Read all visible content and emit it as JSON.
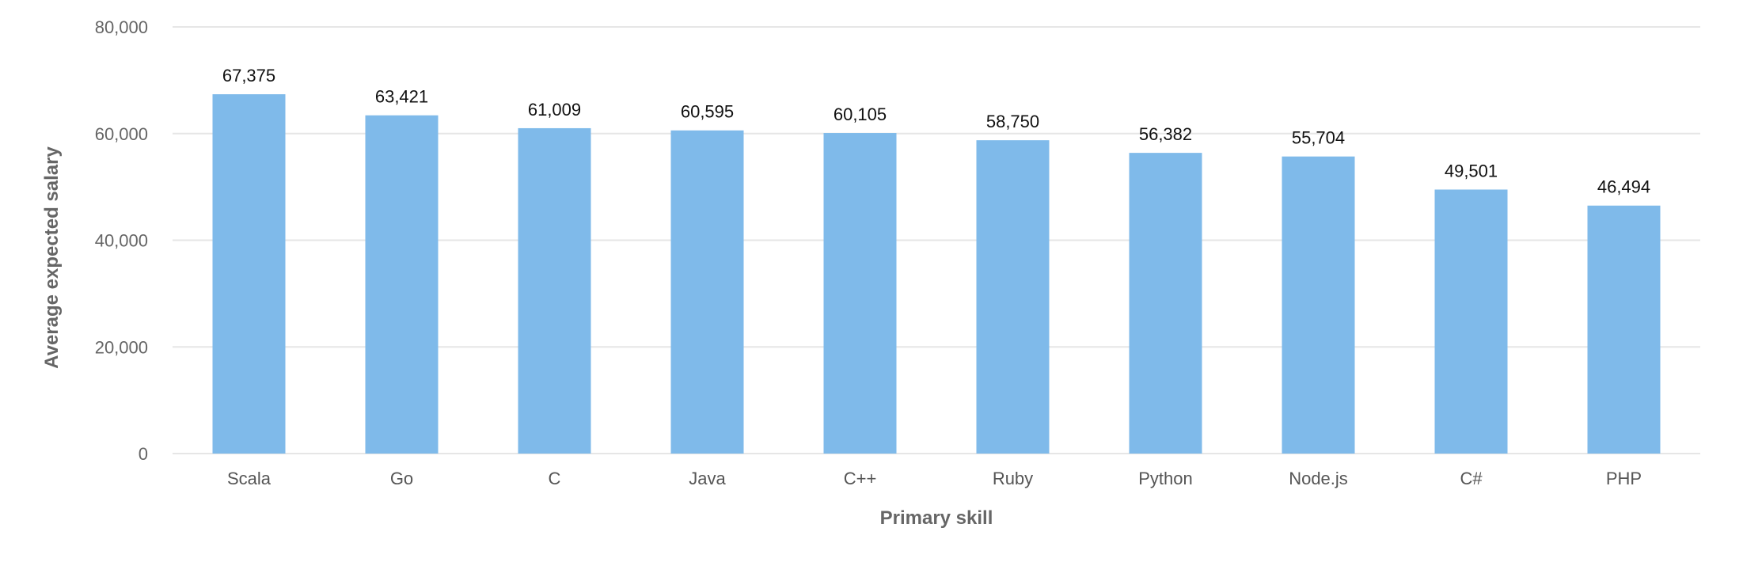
{
  "chart_data": {
    "type": "bar",
    "categories": [
      "Scala",
      "Go",
      "C",
      "Java",
      "C++",
      "Ruby",
      "Python",
      "Node.js",
      "C#",
      "PHP"
    ],
    "values": [
      67375,
      63421,
      61009,
      60595,
      60105,
      58750,
      56382,
      55704,
      49501,
      46494
    ],
    "data_labels": [
      "67,375",
      "63,421",
      "61,009",
      "60,595",
      "60,105",
      "58,750",
      "56,382",
      "55,704",
      "49,501",
      "46,494"
    ],
    "title": "",
    "xlabel": "Primary skill",
    "ylabel": "Average expected salary",
    "ylim": [
      0,
      80000
    ],
    "yticks": [
      0,
      20000,
      40000,
      60000,
      80000
    ],
    "ytick_labels": [
      "0",
      "20,000",
      "40,000",
      "60,000",
      "80,000"
    ],
    "grid": true,
    "legend": "none",
    "bar_color": "#7fbaea",
    "grid_color": "#e6e6e6"
  }
}
